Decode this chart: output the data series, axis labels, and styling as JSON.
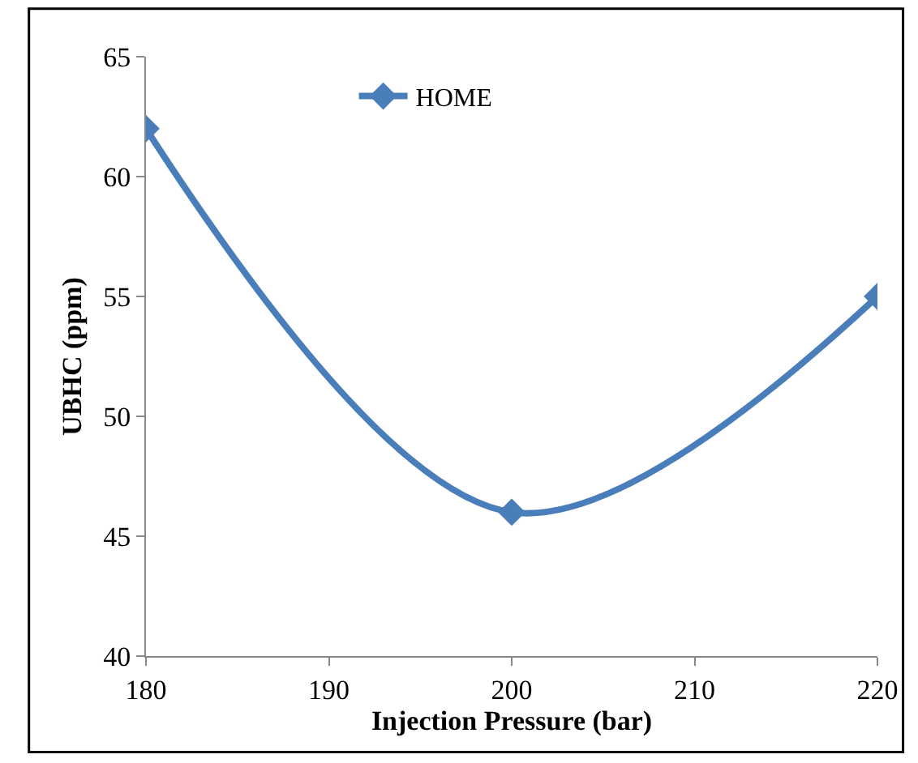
{
  "chart_data": {
    "type": "line",
    "xlabel": "Injection Pressure (bar)",
    "ylabel": "UBHC (ppm)",
    "x": [
      180,
      200,
      220
    ],
    "series": [
      {
        "name": "HOME",
        "color": "#4a7ebb",
        "values": [
          62,
          46,
          55
        ]
      }
    ],
    "xlim": [
      180,
      220
    ],
    "xticks": [
      180,
      190,
      200,
      210,
      220
    ],
    "ylim": [
      40,
      65
    ],
    "yticks": [
      40,
      45,
      50,
      55,
      60,
      65
    ],
    "legend": "top left",
    "marker": "diamond",
    "line_style": "solid"
  }
}
